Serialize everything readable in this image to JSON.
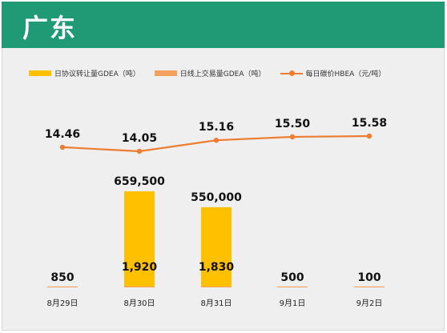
{
  "header": {
    "title": "广东"
  },
  "colors": {
    "header_bg": "#1f9a74",
    "agreement_bar": "#ffc000",
    "online_bar": "#f4a15d",
    "price_line": "#ed7d31"
  },
  "chart_data": {
    "type": "bar",
    "categories": [
      "8月29日",
      "8月30日",
      "8月31日",
      "9月1日",
      "9月2日"
    ],
    "series": [
      {
        "name": "日协议转让量GDEA（吨）",
        "type": "bar",
        "values": [
          850,
          659500,
          550000,
          500,
          100
        ]
      },
      {
        "name": "日线上交易量GDEA（吨）",
        "type": "bar",
        "values": [
          850,
          1920,
          1830,
          500,
          100
        ]
      },
      {
        "name": "每日碳价HBEA（元/吨）",
        "type": "line",
        "values": [
          14.46,
          14.05,
          15.16,
          15.5,
          15.58
        ]
      }
    ],
    "bar_labels": [
      "850",
      "659,500",
      "550,000",
      "500",
      "100"
    ],
    "online_labels": [
      "",
      "1,920",
      "1,830",
      "",
      ""
    ],
    "price_labels": [
      "14.46",
      "14.05",
      "15.16",
      "15.50",
      "15.58"
    ],
    "legend_position": "top-left",
    "grid": false
  }
}
